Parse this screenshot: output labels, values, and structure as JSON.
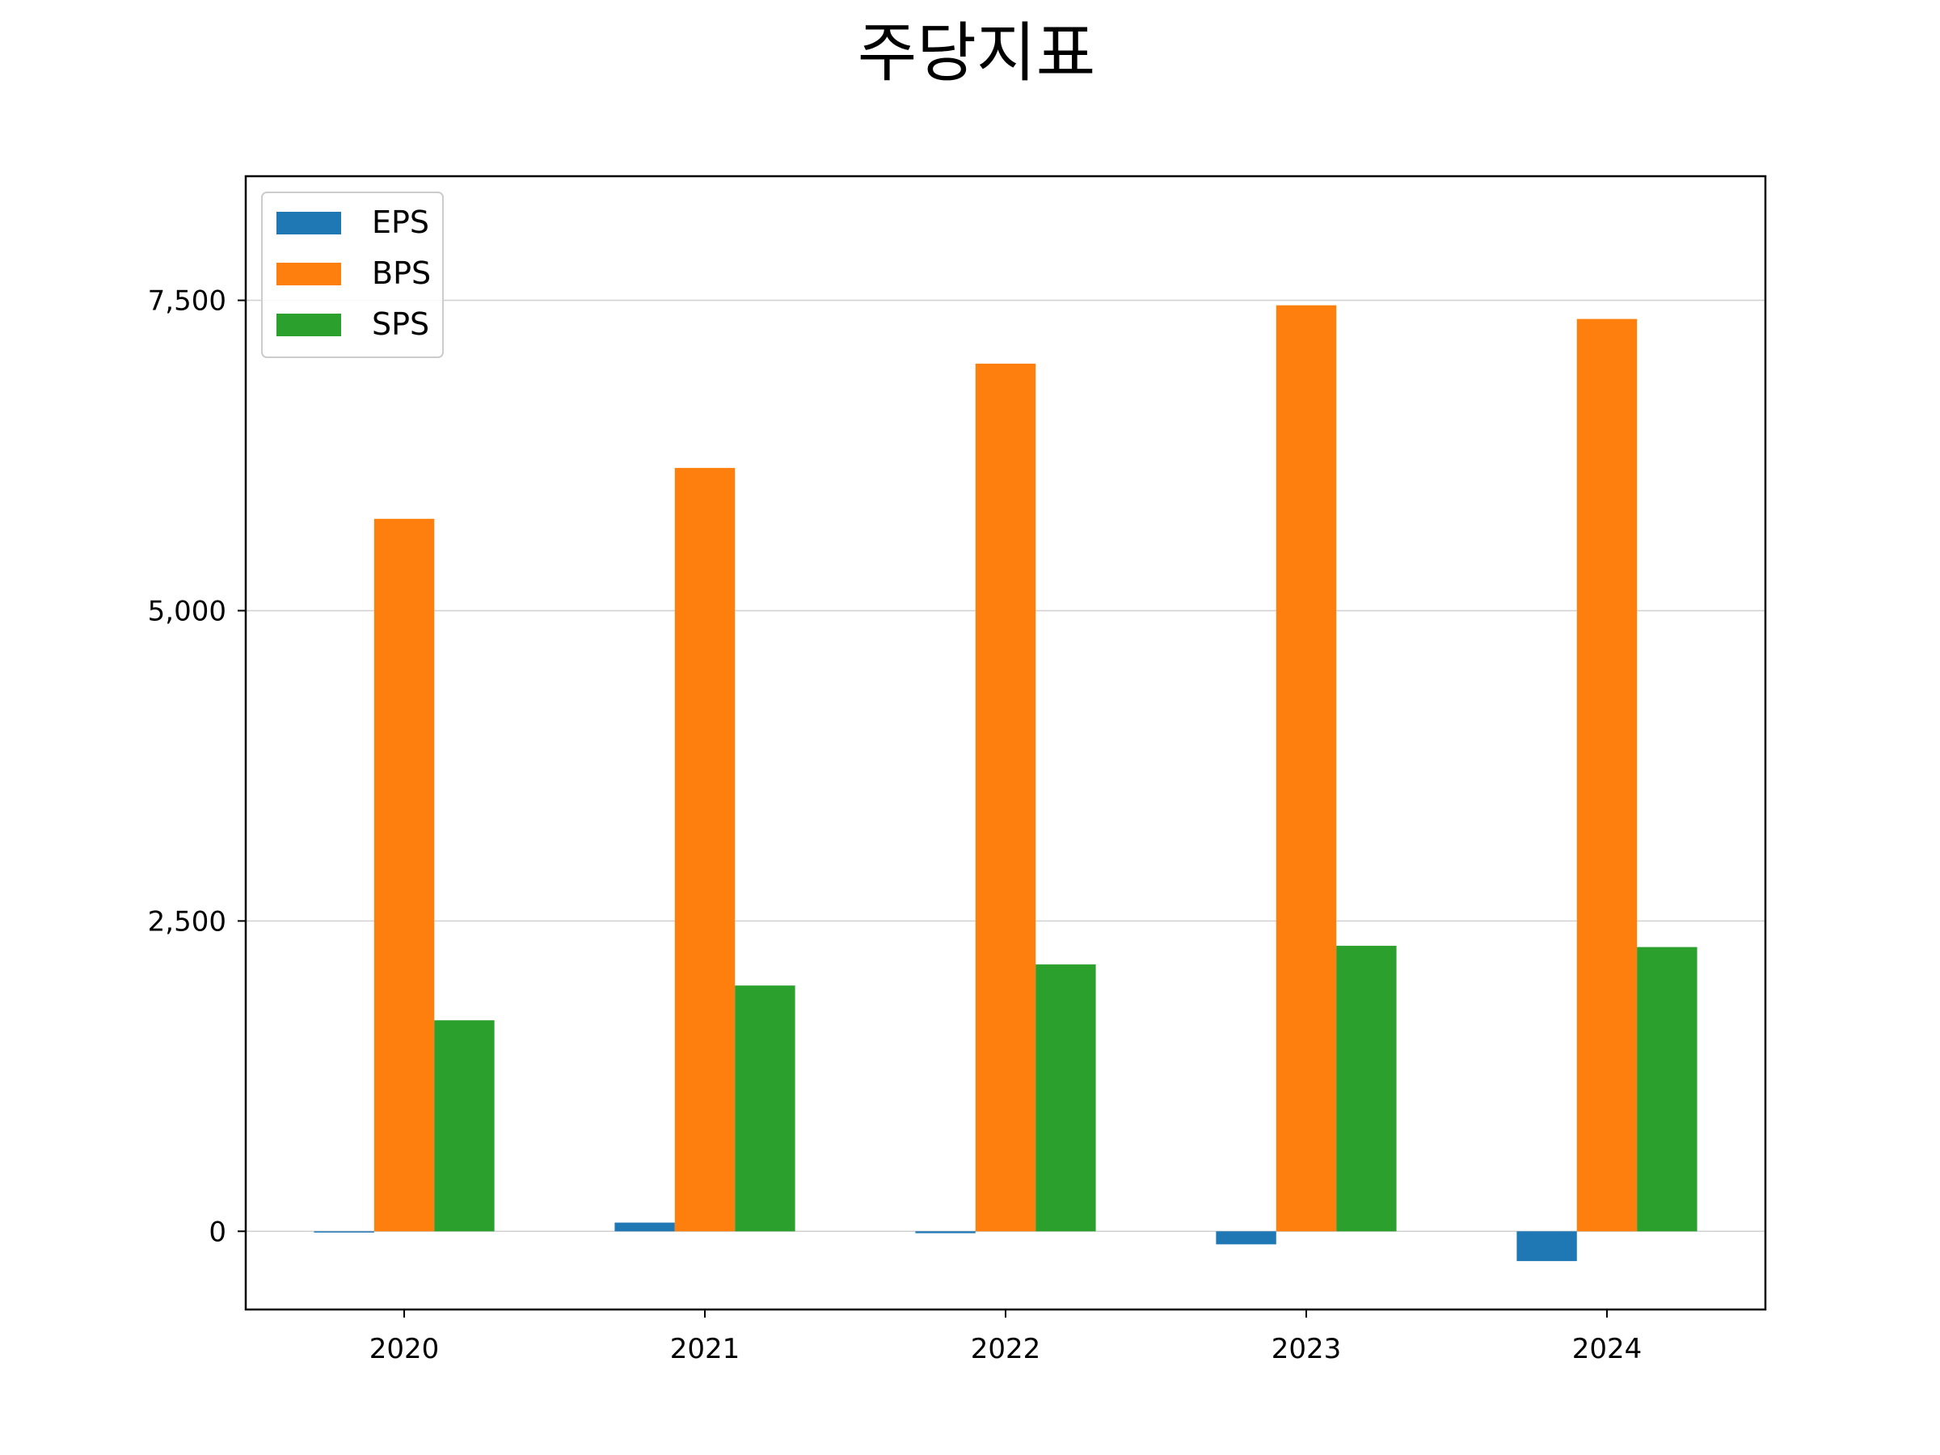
{
  "chart_data": {
    "type": "bar",
    "title": "주당지표",
    "xlabel": "",
    "ylabel": "",
    "categories": [
      "2020",
      "2021",
      "2022",
      "2023",
      "2024"
    ],
    "series": [
      {
        "name": "EPS",
        "color": "#1f77b4",
        "values": [
          -10,
          70,
          -15,
          -105,
          -240
        ]
      },
      {
        "name": "BPS",
        "color": "#ff7f0e",
        "values": [
          5740,
          6150,
          6990,
          7460,
          7350
        ]
      },
      {
        "name": "SPS",
        "color": "#2ca02c",
        "values": [
          1700,
          1980,
          2150,
          2300,
          2290
        ]
      }
    ],
    "ylim": [
      -630,
      8500
    ],
    "yticks": [
      0,
      2500,
      5000,
      7500
    ],
    "ytick_labels": [
      "0",
      "2,500",
      "5,000",
      "7,500"
    ],
    "grid": "y",
    "legend_position": "top-left"
  }
}
